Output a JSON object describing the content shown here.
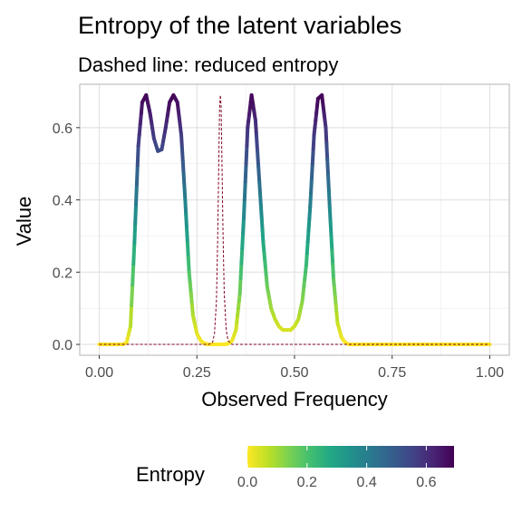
{
  "chart_data": {
    "type": "line",
    "title": "Entropy of the latent variables",
    "subtitle": "Dashed line: reduced entropy",
    "xlabel": "Observed Frequency",
    "ylabel": "Value",
    "xlim": [
      0,
      1
    ],
    "ylim": [
      -0.03,
      0.72
    ],
    "xticks": [
      "0.00",
      "0.25",
      "0.50",
      "0.75",
      "1.00"
    ],
    "xtick_values": [
      0,
      0.25,
      0.5,
      0.75,
      1.0
    ],
    "yticks": [
      "0.0",
      "0.2",
      "0.4",
      "0.6"
    ],
    "ytick_values": [
      0,
      0.2,
      0.4,
      0.6
    ],
    "grid": true,
    "colorscale": "viridis",
    "colorscale_range": [
      0,
      0.693
    ],
    "series": [
      {
        "style": "solid-thick, colored by value",
        "x": [
          0.0,
          0.02,
          0.04,
          0.06,
          0.07,
          0.08,
          0.09,
          0.1,
          0.11,
          0.12,
          0.13,
          0.14,
          0.15,
          0.16,
          0.17,
          0.18,
          0.19,
          0.2,
          0.21,
          0.22,
          0.23,
          0.24,
          0.25,
          0.26,
          0.27,
          0.28,
          0.29,
          0.3,
          0.31,
          0.32,
          0.33,
          0.34,
          0.35,
          0.36,
          0.37,
          0.38,
          0.39,
          0.4,
          0.41,
          0.42,
          0.43,
          0.44,
          0.45,
          0.46,
          0.47,
          0.48,
          0.49,
          0.5,
          0.51,
          0.52,
          0.53,
          0.54,
          0.55,
          0.56,
          0.57,
          0.58,
          0.59,
          0.6,
          0.61,
          0.62,
          0.63,
          0.64,
          0.65,
          0.7,
          0.8,
          0.9,
          1.0
        ],
        "values": [
          0,
          0,
          0,
          0,
          0.005,
          0.05,
          0.28,
          0.55,
          0.67,
          0.69,
          0.64,
          0.57,
          0.535,
          0.54,
          0.6,
          0.67,
          0.69,
          0.67,
          0.58,
          0.4,
          0.2,
          0.08,
          0.03,
          0.01,
          0.002,
          0,
          0,
          0,
          0,
          0,
          0.002,
          0.01,
          0.04,
          0.14,
          0.35,
          0.6,
          0.69,
          0.62,
          0.45,
          0.28,
          0.16,
          0.1,
          0.07,
          0.05,
          0.04,
          0.04,
          0.04,
          0.05,
          0.07,
          0.12,
          0.22,
          0.38,
          0.58,
          0.68,
          0.69,
          0.6,
          0.38,
          0.18,
          0.06,
          0.02,
          0.005,
          0,
          0,
          0,
          0,
          0,
          0
        ]
      },
      {
        "style": "dashed-thin",
        "color": "#800020",
        "x": [
          0.0,
          0.25,
          0.28,
          0.29,
          0.295,
          0.3,
          0.303,
          0.306,
          0.308,
          0.31,
          0.312,
          0.314,
          0.317,
          0.32,
          0.325,
          0.33,
          0.34,
          0.4,
          0.6,
          0.8,
          1.0
        ],
        "values": [
          0,
          0,
          0,
          0.005,
          0.03,
          0.12,
          0.28,
          0.5,
          0.65,
          0.69,
          0.66,
          0.52,
          0.3,
          0.14,
          0.04,
          0.01,
          0,
          0,
          0,
          0,
          0
        ]
      }
    ],
    "legend": {
      "title": "Entropy",
      "ticks": [
        "0.0",
        "0.2",
        "0.4",
        "0.6"
      ],
      "tick_values": [
        0,
        0.2,
        0.4,
        0.6
      ],
      "placement": "bottom"
    }
  }
}
